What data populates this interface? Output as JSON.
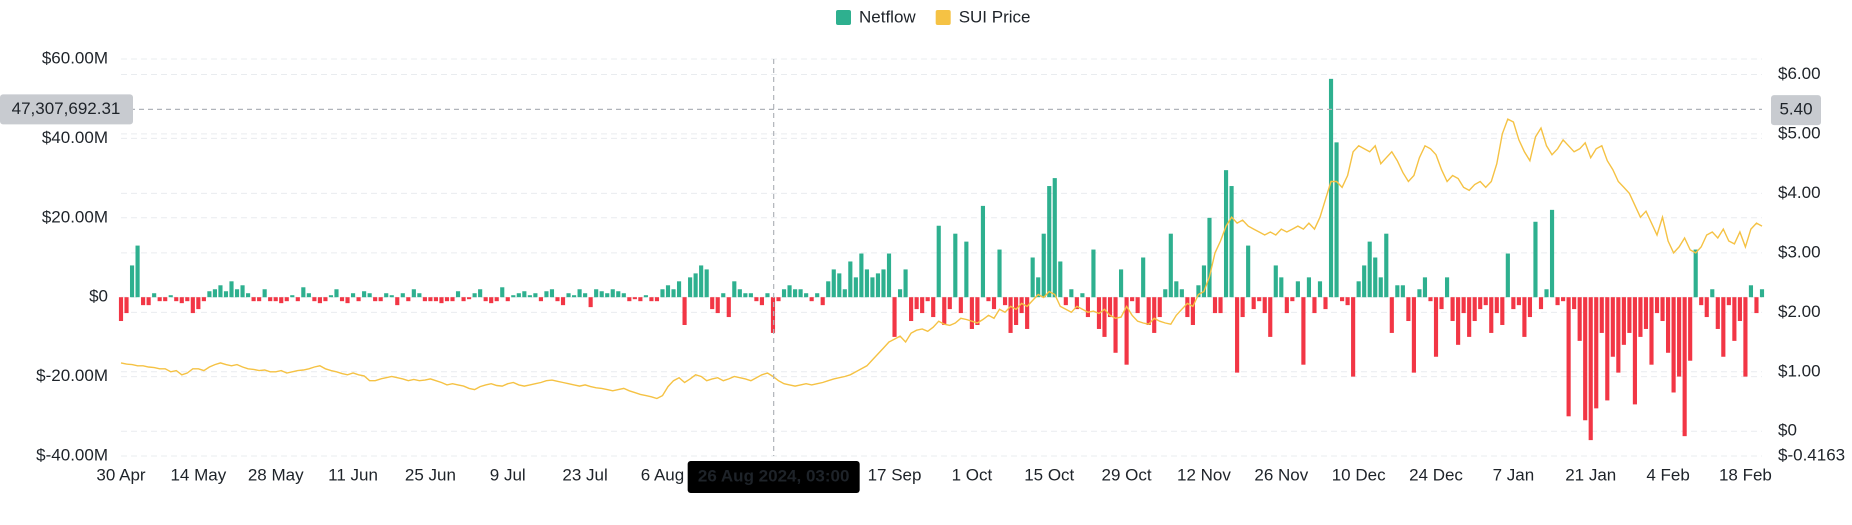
{
  "chart_data": {
    "type": "bar_line",
    "legend": "top",
    "grid": true,
    "categories": [
      "30 Apr",
      null,
      null,
      null,
      null,
      null,
      null,
      null,
      null,
      null,
      null,
      null,
      null,
      null,
      "14 May",
      null,
      null,
      null,
      null,
      null,
      null,
      null,
      null,
      null,
      null,
      null,
      null,
      null,
      "28 May",
      null,
      null,
      null,
      null,
      null,
      null,
      null,
      null,
      null,
      null,
      null,
      null,
      null,
      "11 Jun",
      null,
      null,
      null,
      null,
      null,
      null,
      null,
      null,
      null,
      null,
      null,
      null,
      null,
      "25 Jun",
      null,
      null,
      null,
      null,
      null,
      null,
      null,
      null,
      null,
      null,
      null,
      null,
      null,
      "9 Jul",
      null,
      null,
      null,
      null,
      null,
      null,
      null,
      null,
      null,
      null,
      null,
      null,
      null,
      "23 Jul",
      null,
      null,
      null,
      null,
      null,
      null,
      null,
      null,
      null,
      null,
      null,
      null,
      null,
      "6 Aug",
      null,
      null,
      null,
      null,
      null,
      null,
      null,
      null,
      null,
      null,
      null,
      null,
      null,
      null,
      null,
      null,
      null,
      null,
      null,
      null,
      null,
      null,
      null,
      null,
      null,
      null,
      null,
      null,
      null,
      null,
      null,
      null,
      null,
      null,
      null,
      null,
      null,
      null,
      null,
      null,
      null,
      "17 Sep",
      null,
      null,
      null,
      null,
      null,
      null,
      null,
      null,
      null,
      null,
      null,
      null,
      null,
      "1 Oct",
      null,
      null,
      null,
      null,
      null,
      null,
      null,
      null,
      null,
      null,
      null,
      null,
      null,
      "15 Oct",
      null,
      null,
      null,
      null,
      null,
      null,
      null,
      null,
      null,
      null,
      null,
      null,
      null,
      "29 Oct",
      null,
      null,
      null,
      null,
      null,
      null,
      null,
      null,
      null,
      null,
      null,
      null,
      null,
      "12 Nov",
      null,
      null,
      null,
      null,
      null,
      null,
      null,
      null,
      null,
      null,
      null,
      null,
      null,
      "26 Nov",
      null,
      null,
      null,
      null,
      null,
      null,
      null,
      null,
      null,
      null,
      null,
      null,
      null,
      "10 Dec",
      null,
      null,
      null,
      null,
      null,
      null,
      null,
      null,
      null,
      null,
      null,
      null,
      null,
      "24 Dec",
      null,
      null,
      null,
      null,
      null,
      null,
      null,
      null,
      null,
      null,
      null,
      null,
      null,
      "7 Jan",
      null,
      null,
      null,
      null,
      null,
      null,
      null,
      null,
      null,
      null,
      null,
      null,
      null,
      "21 Jan",
      null,
      null,
      null,
      null,
      null,
      null,
      null,
      null,
      null,
      null,
      null,
      null,
      null,
      "4 Feb",
      null,
      null,
      null,
      null,
      null,
      null,
      null,
      null,
      null,
      null,
      null,
      null,
      null,
      "18 Feb",
      null,
      null,
      null
    ],
    "series": [
      {
        "name": "Netflow",
        "color": "#2eb08f",
        "negative_color": "#f23645",
        "values": [
          -6,
          -4,
          8,
          13,
          -2,
          -2,
          1,
          -1,
          -1,
          0.5,
          -1,
          -1.5,
          -1,
          -4,
          -3,
          -1,
          1.5,
          2,
          3,
          1.5,
          4,
          2,
          3,
          1,
          -1,
          -1,
          2,
          -1,
          -1,
          -1.5,
          -1,
          0.5,
          -1,
          2.5,
          1,
          -1,
          -1.5,
          -1,
          0.5,
          2,
          -1,
          -1.5,
          1,
          -1,
          1.5,
          1,
          -1,
          -1,
          1,
          0.5,
          -2,
          1,
          -1,
          2,
          1,
          -1,
          -1,
          -1,
          -1.5,
          -1,
          -1,
          1.5,
          -1,
          -0.5,
          1,
          2,
          -1,
          -1.5,
          -1,
          2.5,
          -1,
          0.5,
          1,
          1.5,
          0.5,
          1,
          -1,
          1.5,
          2,
          -1,
          -2,
          1,
          0.5,
          2,
          1,
          -2.5,
          2,
          1.5,
          1,
          2,
          1.5,
          1,
          -1,
          -0.5,
          -1,
          0.5,
          -1,
          -1,
          2,
          3,
          2,
          4,
          -7,
          5,
          6,
          8,
          7,
          -3,
          -4,
          1,
          -5,
          4,
          2,
          1,
          1,
          -1,
          -2,
          1,
          -9,
          -1,
          2,
          3,
          2,
          2,
          1,
          -1,
          1,
          -2,
          4,
          7,
          6,
          2,
          9,
          5,
          11,
          7,
          5,
          6,
          7,
          11,
          -10,
          2,
          7,
          -6,
          -3,
          -4,
          -1,
          -5,
          18,
          -7,
          -3,
          16,
          -4,
          14,
          -8,
          -7,
          23,
          -1,
          -3,
          12,
          -2,
          -9,
          -7,
          -4,
          -8,
          10,
          5,
          16,
          28,
          30,
          9,
          -2,
          2,
          -3,
          1,
          -5,
          12,
          -8,
          -10,
          -5,
          -14,
          7,
          -17,
          -1,
          -4,
          10,
          -7,
          -9,
          -5,
          2,
          16,
          4,
          2,
          -5,
          -7,
          3,
          8,
          20,
          -4,
          -4,
          32,
          28,
          -19,
          -5,
          13,
          -3,
          -1,
          -4,
          -10,
          8,
          5,
          -4,
          -1,
          4,
          -17,
          5,
          -4,
          4,
          -3,
          55,
          39,
          -1,
          -2,
          -20,
          4,
          8,
          14,
          10,
          5,
          16,
          -9,
          3,
          3,
          -6,
          -19,
          2,
          5,
          -1,
          -15,
          -3,
          5,
          -6,
          -12,
          -4,
          -10,
          -6,
          -3,
          -2,
          -9,
          -4,
          -7,
          11,
          -3,
          -2,
          -10,
          -5,
          19,
          -3,
          2,
          22,
          -2,
          -1,
          -30,
          -3,
          -11,
          -31,
          -36,
          -28,
          -9,
          -26,
          -15,
          -19,
          -12,
          -9,
          -27,
          -10,
          -8,
          -17,
          -4,
          -6,
          -14,
          -24,
          -20,
          -35,
          -16,
          12,
          -2,
          -5,
          2,
          -8,
          -15,
          -2,
          -11,
          -6,
          -20,
          3,
          -4,
          2
        ]
      },
      {
        "name": "SUI Price",
        "color": "#f5c244",
        "axis": "y2",
        "values": [
          1.15,
          1.13,
          1.12,
          1.1,
          1.1,
          1.08,
          1.07,
          1.05,
          1.05,
          1.0,
          1.02,
          0.95,
          0.98,
          1.05,
          1.05,
          1.02,
          1.08,
          1.12,
          1.15,
          1.12,
          1.1,
          1.12,
          1.08,
          1.05,
          1.04,
          1.02,
          1.03,
          1.0,
          1.0,
          1.02,
          0.98,
          1.0,
          1.02,
          1.03,
          1.05,
          1.08,
          1.1,
          1.05,
          1.02,
          1.0,
          0.97,
          0.95,
          0.98,
          0.95,
          0.93,
          0.85,
          0.85,
          0.88,
          0.9,
          0.92,
          0.9,
          0.88,
          0.85,
          0.87,
          0.85,
          0.86,
          0.88,
          0.85,
          0.82,
          0.78,
          0.8,
          0.78,
          0.76,
          0.72,
          0.7,
          0.75,
          0.78,
          0.8,
          0.77,
          0.76,
          0.8,
          0.82,
          0.78,
          0.76,
          0.78,
          0.8,
          0.82,
          0.85,
          0.86,
          0.84,
          0.82,
          0.8,
          0.78,
          0.76,
          0.78,
          0.75,
          0.73,
          0.72,
          0.7,
          0.68,
          0.7,
          0.72,
          0.68,
          0.65,
          0.62,
          0.6,
          0.58,
          0.55,
          0.6,
          0.75,
          0.85,
          0.9,
          0.82,
          0.88,
          0.95,
          0.92,
          0.85,
          0.88,
          0.9,
          0.85,
          0.88,
          0.92,
          0.9,
          0.88,
          0.85,
          0.9,
          0.95,
          0.98,
          0.92,
          0.85,
          0.8,
          0.78,
          0.76,
          0.78,
          0.8,
          0.78,
          0.8,
          0.82,
          0.85,
          0.88,
          0.9,
          0.92,
          0.95,
          1.0,
          1.05,
          1.1,
          1.2,
          1.3,
          1.4,
          1.5,
          1.55,
          1.6,
          1.5,
          1.65,
          1.7,
          1.72,
          1.68,
          1.75,
          1.85,
          1.8,
          1.78,
          1.82,
          1.9,
          1.88,
          1.85,
          1.82,
          1.88,
          1.95,
          1.9,
          2.05,
          2.0,
          2.1,
          2.05,
          2.15,
          2.1,
          2.2,
          2.3,
          2.25,
          2.35,
          2.3,
          2.1,
          2.05,
          2.0,
          2.1,
          2.05,
          2.0,
          2.02,
          1.98,
          2.05,
          1.95,
          1.9,
          1.92,
          2.1,
          1.95,
          1.85,
          1.82,
          1.8,
          1.9,
          1.85,
          1.82,
          1.8,
          1.95,
          2.05,
          2.15,
          2.1,
          2.3,
          2.35,
          2.6,
          3.0,
          3.2,
          3.45,
          3.6,
          3.5,
          3.55,
          3.45,
          3.4,
          3.35,
          3.3,
          3.35,
          3.3,
          3.4,
          3.35,
          3.4,
          3.45,
          3.4,
          3.5,
          3.4,
          3.6,
          3.9,
          4.2,
          4.2,
          4.1,
          4.3,
          4.7,
          4.8,
          4.75,
          4.7,
          4.8,
          4.5,
          4.6,
          4.7,
          4.55,
          4.35,
          4.2,
          4.3,
          4.6,
          4.8,
          4.75,
          4.65,
          4.4,
          4.2,
          4.3,
          4.25,
          4.1,
          4.05,
          4.15,
          4.2,
          4.1,
          4.2,
          4.5,
          5.0,
          5.25,
          5.2,
          4.9,
          4.7,
          4.55,
          4.95,
          5.1,
          4.8,
          4.65,
          4.75,
          4.9,
          4.8,
          4.7,
          4.75,
          4.85,
          4.6,
          4.75,
          4.8,
          4.55,
          4.4,
          4.2,
          4.1,
          4.0,
          3.8,
          3.6,
          3.7,
          3.5,
          3.3,
          3.6,
          3.2,
          3.0,
          3.1,
          3.25,
          3.05,
          3.0,
          3.1,
          3.3,
          3.35,
          3.25,
          3.4,
          3.2,
          3.15,
          3.35,
          3.1,
          3.4,
          3.5,
          3.45
        ]
      }
    ],
    "ylim": [
      -40,
      60
    ],
    "yticks": [
      {
        "value": 60,
        "label": "$60.00M"
      },
      {
        "value": 40,
        "label": "$40.00M"
      },
      {
        "value": 20,
        "label": "$20.00M"
      },
      {
        "value": 0,
        "label": "$0"
      },
      {
        "value": -20,
        "label": "$-20.00M"
      },
      {
        "value": -40,
        "label": "$-40.00M"
      }
    ],
    "y2lim": [
      -0.4163,
      6.26
    ],
    "y2ticks": [
      {
        "value": 6,
        "label": "$6.00"
      },
      {
        "value": 5,
        "label": "$5.00"
      },
      {
        "value": 4,
        "label": "$4.00"
      },
      {
        "value": 3,
        "label": "$3.00"
      },
      {
        "value": 2,
        "label": "$2.00"
      },
      {
        "value": 1,
        "label": "$1.00"
      },
      {
        "value": 0,
        "label": "$0"
      },
      {
        "value": -0.4163,
        "label": "$-0.4163"
      }
    ],
    "crosshair": {
      "x_label": "26 Aug 2024, 03:00",
      "y": {
        "value": 47.30769231,
        "label": "47,307,692.31"
      },
      "y2": {
        "value": 5.4,
        "label": "5.40"
      }
    }
  }
}
